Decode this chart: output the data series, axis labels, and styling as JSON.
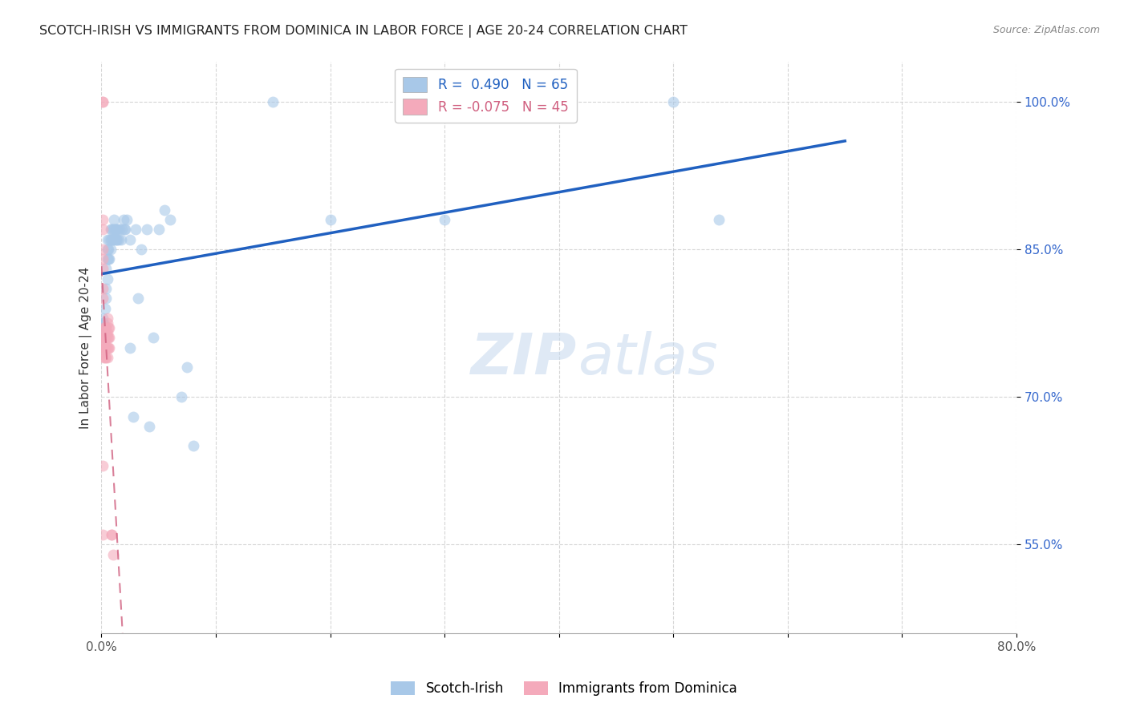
{
  "title": "SCOTCH-IRISH VS IMMIGRANTS FROM DOMINICA IN LABOR FORCE | AGE 20-24 CORRELATION CHART",
  "source": "Source: ZipAtlas.com",
  "ylabel": "In Labor Force | Age 20-24",
  "blue_R": 0.49,
  "blue_N": 65,
  "pink_R": -0.075,
  "pink_N": 45,
  "legend_label_blue": "Scotch-Irish",
  "legend_label_pink": "Immigrants from Dominica",
  "blue_color": "#A8C8E8",
  "pink_color": "#F4AABB",
  "blue_line_color": "#2060C0",
  "pink_line_color": "#D06080",
  "background_color": "#FFFFFF",
  "watermark_zip": "ZIP",
  "watermark_atlas": "atlas",
  "xlim": [
    0.0,
    0.8
  ],
  "ylim": [
    0.46,
    1.04
  ],
  "blue_x": [
    0.001,
    0.001,
    0.001,
    0.002,
    0.002,
    0.002,
    0.002,
    0.003,
    0.003,
    0.003,
    0.004,
    0.004,
    0.004,
    0.005,
    0.005,
    0.005,
    0.005,
    0.006,
    0.006,
    0.007,
    0.007,
    0.008,
    0.008,
    0.008,
    0.009,
    0.009,
    0.01,
    0.01,
    0.01,
    0.011,
    0.011,
    0.012,
    0.012,
    0.013,
    0.013,
    0.014,
    0.014,
    0.015,
    0.016,
    0.017,
    0.018,
    0.019,
    0.02,
    0.021,
    0.022,
    0.025,
    0.025,
    0.028,
    0.03,
    0.032,
    0.035,
    0.04,
    0.042,
    0.045,
    0.05,
    0.055,
    0.06,
    0.07,
    0.075,
    0.08,
    0.15,
    0.2,
    0.3,
    0.5,
    0.54
  ],
  "blue_y": [
    0.775,
    0.78,
    0.775,
    0.76,
    0.765,
    0.77,
    0.775,
    0.76,
    0.77,
    0.79,
    0.8,
    0.81,
    0.83,
    0.82,
    0.84,
    0.85,
    0.86,
    0.84,
    0.85,
    0.84,
    0.86,
    0.85,
    0.86,
    0.87,
    0.86,
    0.87,
    0.86,
    0.86,
    0.87,
    0.87,
    0.88,
    0.86,
    0.87,
    0.86,
    0.87,
    0.86,
    0.87,
    0.86,
    0.87,
    0.86,
    0.87,
    0.88,
    0.87,
    0.87,
    0.88,
    0.75,
    0.86,
    0.68,
    0.87,
    0.8,
    0.85,
    0.87,
    0.67,
    0.76,
    0.87,
    0.89,
    0.88,
    0.7,
    0.73,
    0.65,
    1.0,
    0.88,
    0.88,
    1.0,
    0.88
  ],
  "pink_x": [
    0.001,
    0.001,
    0.001,
    0.001,
    0.001,
    0.001,
    0.001,
    0.001,
    0.001,
    0.001,
    0.001,
    0.002,
    0.002,
    0.002,
    0.002,
    0.002,
    0.002,
    0.002,
    0.002,
    0.002,
    0.003,
    0.003,
    0.003,
    0.003,
    0.003,
    0.004,
    0.004,
    0.004,
    0.004,
    0.004,
    0.005,
    0.005,
    0.005,
    0.005,
    0.005,
    0.005,
    0.006,
    0.006,
    0.006,
    0.007,
    0.007,
    0.007,
    0.009,
    0.009,
    0.01
  ],
  "pink_y": [
    1.0,
    1.0,
    0.88,
    0.87,
    0.85,
    0.84,
    0.83,
    0.81,
    0.8,
    0.63,
    0.56,
    0.77,
    0.76,
    0.76,
    0.755,
    0.76,
    0.75,
    0.75,
    0.745,
    0.74,
    0.77,
    0.76,
    0.76,
    0.75,
    0.74,
    0.77,
    0.765,
    0.76,
    0.75,
    0.74,
    0.78,
    0.775,
    0.765,
    0.76,
    0.75,
    0.74,
    0.77,
    0.76,
    0.75,
    0.77,
    0.76,
    0.75,
    0.56,
    0.56,
    0.54
  ]
}
